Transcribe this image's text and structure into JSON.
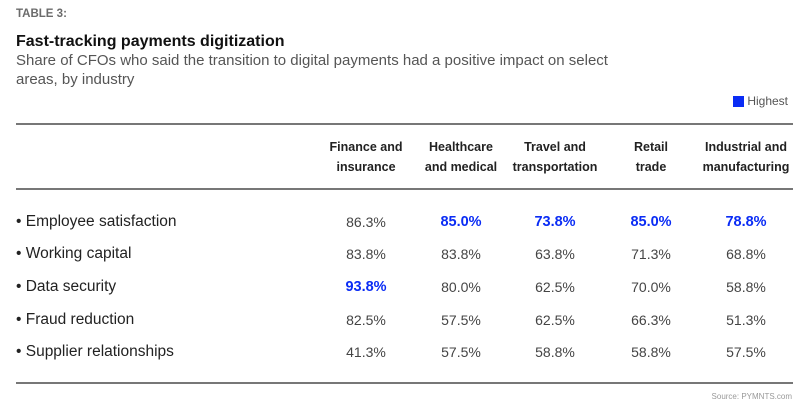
{
  "label": "TABLE 3:",
  "title": "Fast-tracking payments digitization",
  "subtitle": "Share of CFOs who said the transition to digital payments had a positive impact on select areas, by industry",
  "legend": {
    "label": "Highest",
    "color": "#0a2cf5"
  },
  "columns": [
    {
      "line1": "Finance and",
      "line2": "insurance"
    },
    {
      "line1": "Healthcare",
      "line2": "and medical"
    },
    {
      "line1": "Travel and",
      "line2": "transportation"
    },
    {
      "line1": "Retail",
      "line2": "trade"
    },
    {
      "line1": "Industrial and",
      "line2": "manufacturing"
    }
  ],
  "rows": [
    {
      "label": "•  Employee satisfaction",
      "values": [
        "86.3%",
        "85.0%",
        "73.8%",
        "85.0%",
        "78.8%"
      ],
      "highest": [
        false,
        true,
        true,
        true,
        true
      ]
    },
    {
      "label": "•  Working capital",
      "values": [
        "83.8%",
        "83.8%",
        "63.8%",
        "71.3%",
        "68.8%"
      ],
      "highest": [
        false,
        false,
        false,
        false,
        false
      ]
    },
    {
      "label": "•  Data security",
      "values": [
        "93.8%",
        "80.0%",
        "62.5%",
        "70.0%",
        "58.8%"
      ],
      "highest": [
        true,
        false,
        false,
        false,
        false
      ]
    },
    {
      "label": "•  Fraud reduction",
      "values": [
        "82.5%",
        "57.5%",
        "62.5%",
        "66.3%",
        "51.3%"
      ],
      "highest": [
        false,
        false,
        false,
        false,
        false
      ]
    },
    {
      "label": "•  Supplier relationships",
      "values": [
        "41.3%",
        "57.5%",
        "58.8%",
        "58.8%",
        "57.5%"
      ],
      "highest": [
        false,
        false,
        false,
        false,
        false
      ]
    }
  ],
  "source": "Source: PYMNTS.com"
}
